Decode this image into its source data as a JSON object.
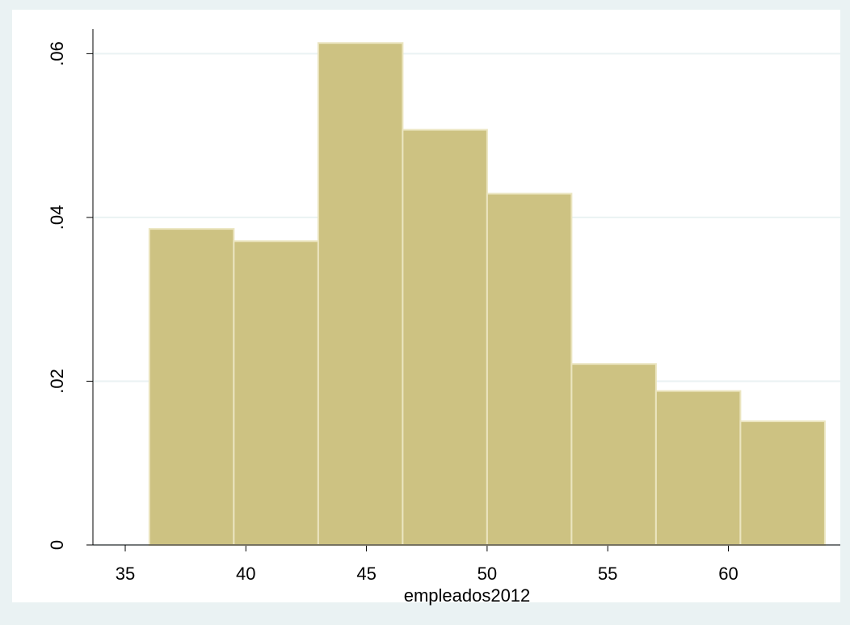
{
  "chart_data": {
    "type": "histogram",
    "x_label": "empleados2012",
    "bins": [
      36,
      39.5,
      43,
      46.5,
      50,
      53.5,
      57,
      60.5,
      64
    ],
    "values": [
      0.0386,
      0.0371,
      0.0613,
      0.0507,
      0.0429,
      0.0221,
      0.0188,
      0.0151
    ],
    "color": "#cdc282",
    "xlim": [
      33.66,
      64.64
    ],
    "ylim": [
      0,
      0.063
    ],
    "xticks": [
      35,
      40,
      45,
      50,
      55,
      60
    ],
    "yticks": [
      0,
      {
        "value": 0.02,
        "label": ".02"
      },
      {
        "value": 0.04,
        "label": ".04"
      },
      {
        "value": 0.06,
        "label": ".06"
      }
    ],
    "grid": true
  }
}
